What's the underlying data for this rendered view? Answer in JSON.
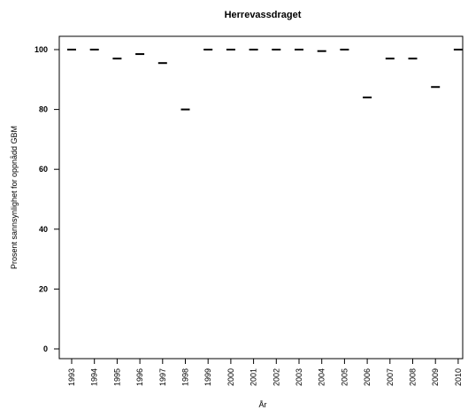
{
  "chart_data": {
    "type": "scatter",
    "title": "Herrevassdraget",
    "xlabel": "År",
    "ylabel": "Prosent sannsynlighet for oppnådd GBM",
    "categories": [
      "1993",
      "1994",
      "1995",
      "1996",
      "1997",
      "1998",
      "1999",
      "2000",
      "2001",
      "2002",
      "2003",
      "2004",
      "2005",
      "2006",
      "2007",
      "2008",
      "2009",
      "2010"
    ],
    "values": [
      100,
      100,
      97,
      98.5,
      95.5,
      80,
      100,
      100,
      100,
      100,
      100,
      99.5,
      100,
      84,
      97,
      97,
      87.5,
      100
    ],
    "ylim": [
      -2,
      105
    ],
    "yticks": [
      0,
      20,
      40,
      60,
      80,
      100
    ],
    "marker": "horizontal-dash",
    "color": "#000000",
    "grid": false,
    "legend": "none"
  }
}
